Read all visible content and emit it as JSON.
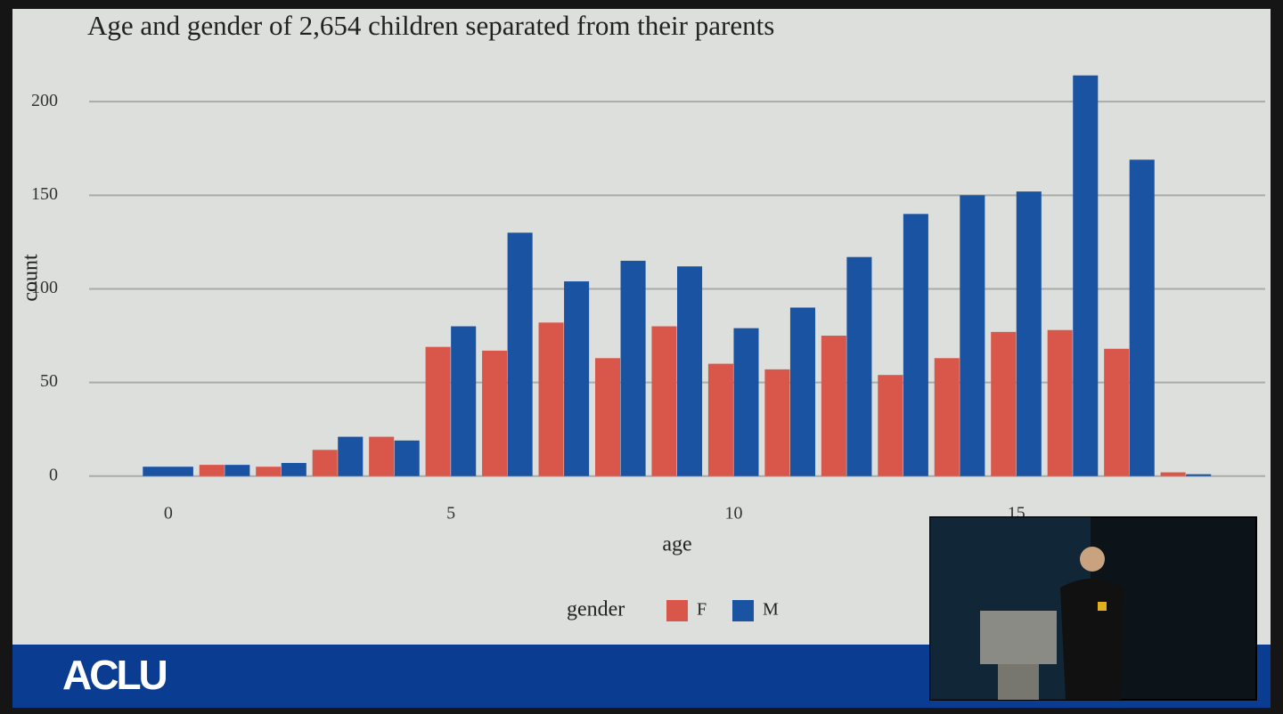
{
  "chart_data": {
    "type": "bar",
    "title": "Age and gender of 2,654 children separated from their parents",
    "x_label": "age",
    "y_label": "count",
    "categories": [
      0,
      1,
      2,
      3,
      4,
      5,
      6,
      7,
      8,
      9,
      10,
      11,
      12,
      13,
      14,
      15,
      16,
      17,
      18
    ],
    "series": [
      {
        "name": "F",
        "color": "#d9574a",
        "values": [
          null,
          6,
          5,
          14,
          21,
          69,
          67,
          82,
          63,
          80,
          60,
          57,
          75,
          54,
          63,
          77,
          78,
          68,
          2
        ]
      },
      {
        "name": "M",
        "color": "#1b53a3",
        "values": [
          5,
          6,
          7,
          21,
          19,
          80,
          130,
          104,
          115,
          112,
          79,
          90,
          117,
          140,
          150,
          152,
          214,
          169,
          1
        ]
      }
    ],
    "xlim": [
      -1.4,
      19.4
    ],
    "xticks": [
      0,
      5,
      10,
      15
    ],
    "ylim": [
      -12,
      221
    ],
    "yticks": [
      0,
      50,
      100,
      150,
      200
    ],
    "grid": true,
    "legend_title": "gender",
    "legend_position": "bottom",
    "footer_logo": "ACLU"
  }
}
